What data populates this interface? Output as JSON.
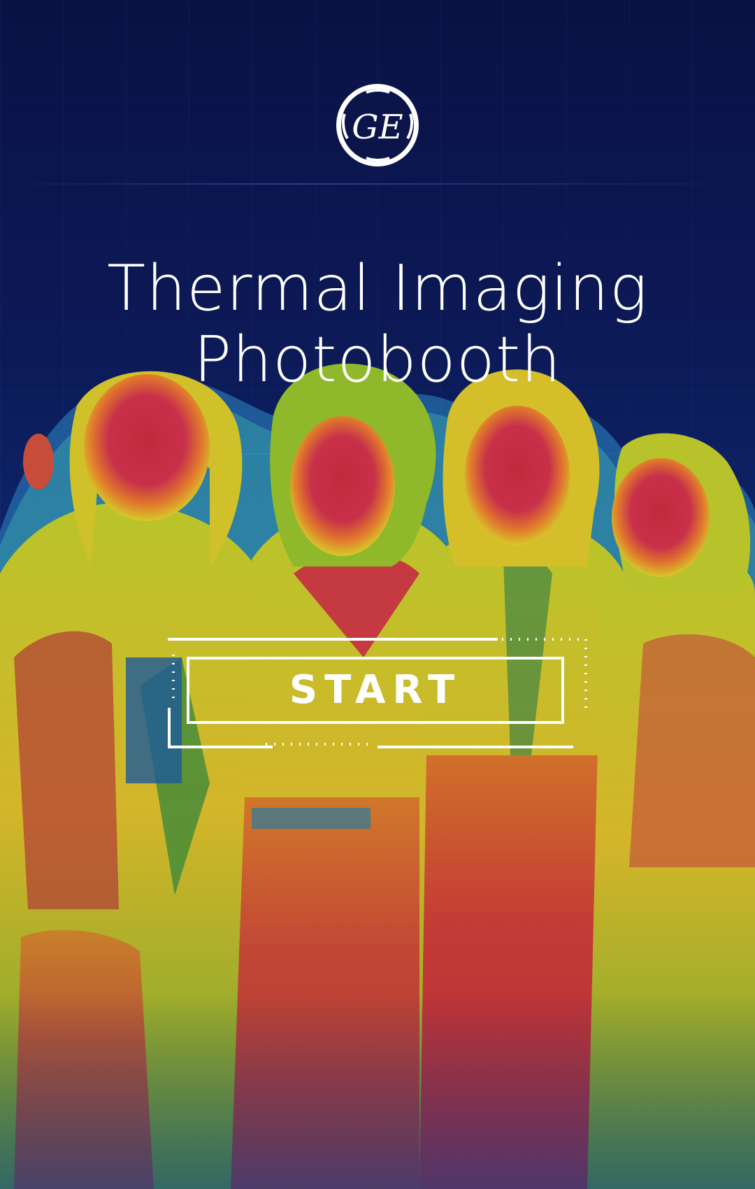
{
  "app": {
    "brand_logo": "ge-monogram-logo",
    "title_line1": "Thermal Imaging",
    "title_line2": "Photobooth"
  },
  "actions": {
    "start_label": "START"
  },
  "background": {
    "description_icon": "thermal-camera-group-photo"
  },
  "colors": {
    "background_dark": "#0b154a",
    "text": "#ffffff",
    "thermal_cold": "#1a4fa0",
    "thermal_mid": "#7ab82a",
    "thermal_warm": "#e8c020",
    "thermal_hot": "#c2283c"
  }
}
